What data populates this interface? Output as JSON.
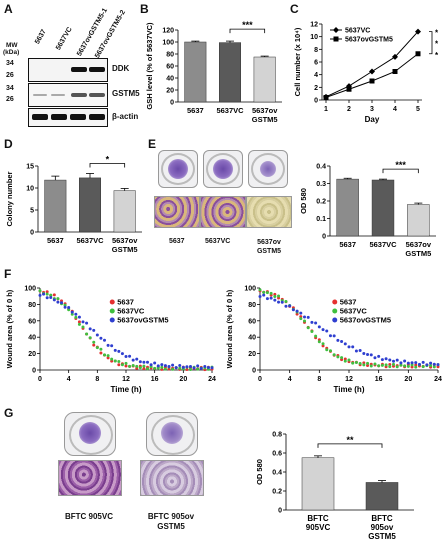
{
  "panels": {
    "A": "A",
    "B": "B",
    "C": "C",
    "D": "D",
    "E": "E",
    "F": "F",
    "G": "G"
  },
  "panelA": {
    "mw_title": "MW",
    "mw_unit": "(kDa)",
    "lanes": [
      "5637",
      "5637VC",
      "5637ovGSTM5-1",
      "5637ovGSTM5-2"
    ],
    "markers": [
      "34",
      "26",
      "34",
      "26"
    ],
    "blots": [
      "DDK",
      "GSTM5",
      "β-actin"
    ]
  },
  "chart_data": [
    {
      "id": "B",
      "type": "bar",
      "categories": [
        "5637",
        "5637VC",
        "5637ov GSTM5"
      ],
      "values": [
        100,
        99,
        75
      ],
      "errors": [
        1.5,
        2.5,
        1.5
      ],
      "ylabel": "GSH level (% of 5637VC)",
      "ylim": [
        0,
        120
      ],
      "yticks": [
        "0",
        "20",
        "40",
        "60",
        "80",
        "100",
        "120"
      ],
      "significance": "***",
      "bar_colors": [
        "#8c8c8c",
        "#5a5a5a",
        "#d3d3d3"
      ]
    },
    {
      "id": "C",
      "type": "line",
      "x": [
        1,
        2,
        3,
        4,
        5
      ],
      "xticks": [
        "1",
        "2",
        "3",
        "4",
        "5"
      ],
      "xlabel": "Day",
      "ylabel": "Cell number (x 10⁴)",
      "ylim": [
        0,
        12
      ],
      "yticks": [
        "0",
        "2",
        "4",
        "6",
        "8",
        "10",
        "12"
      ],
      "series": [
        {
          "name": "5637VC",
          "values": [
            0.5,
            2.2,
            4.5,
            6.8,
            10.8
          ],
          "marker": "diamond"
        },
        {
          "name": "5637ovGSTM5",
          "values": [
            0.4,
            1.7,
            3.0,
            4.5,
            7.3
          ],
          "marker": "square"
        }
      ],
      "significance": [
        "*",
        "*",
        "*"
      ]
    },
    {
      "id": "D",
      "type": "bar",
      "categories": [
        "5637",
        "5637VC",
        "5637ov GSTM5"
      ],
      "values": [
        11.8,
        12.3,
        9.4
      ],
      "errors": [
        0.9,
        1.0,
        0.5
      ],
      "ylabel": "Colony number",
      "ylim": [
        0,
        15
      ],
      "yticks": [
        "0",
        "5",
        "10",
        "15"
      ],
      "significance": "*",
      "bar_colors": [
        "#8c8c8c",
        "#5a5a5a",
        "#d3d3d3"
      ]
    },
    {
      "id": "E",
      "type": "bar",
      "categories": [
        "5637",
        "5637VC",
        "5637ov GSTM5"
      ],
      "values": [
        0.325,
        0.32,
        0.18
      ],
      "errors": [
        0.005,
        0.005,
        0.008
      ],
      "ylabel": "OD 580",
      "ylim": [
        0,
        0.4
      ],
      "yticks": [
        "0",
        "0.1",
        "0.2",
        "0.3",
        "0.4"
      ],
      "significance": "***",
      "bar_colors": [
        "#8c8c8c",
        "#5a5a5a",
        "#d3d3d3"
      ]
    },
    {
      "id": "F1",
      "type": "scatter",
      "xlabel": "Time (h)",
      "ylabel": "Wound area (% of 0 h)",
      "xlim": [
        0,
        24
      ],
      "xticks": [
        "0",
        "4",
        "8",
        "12",
        "16",
        "20",
        "24"
      ],
      "ylim": [
        0,
        100
      ],
      "yticks": [
        "0",
        "20",
        "40",
        "60",
        "80",
        "100"
      ],
      "series": [
        {
          "name": "5637",
          "color": "#e53030",
          "t0": 0.5,
          "k": 0.55,
          "floor": 2
        },
        {
          "name": "5637VC",
          "color": "#3fbf3f",
          "t0": 0.5,
          "k": 0.5,
          "floor": 2
        },
        {
          "name": "5637ovGSTM5",
          "color": "#2f3fd0",
          "t0": 1.5,
          "k": 0.35,
          "floor": 3
        }
      ]
    },
    {
      "id": "F2",
      "type": "scatter",
      "xlabel": "Time (h)",
      "ylabel": "Wound area (% of 0 h)",
      "xlim": [
        0,
        24
      ],
      "xticks": [
        "0",
        "4",
        "8",
        "12",
        "16",
        "20",
        "24"
      ],
      "ylim": [
        0,
        100
      ],
      "yticks": [
        "0",
        "20",
        "40",
        "60",
        "80",
        "100"
      ],
      "series": [
        {
          "name": "5637",
          "color": "#e53030",
          "t0": 1.0,
          "k": 0.5,
          "floor": 5
        },
        {
          "name": "5637VC",
          "color": "#3fbf3f",
          "t0": 1.0,
          "k": 0.5,
          "floor": 5
        },
        {
          "name": "5637ovGSTM5",
          "color": "#2f3fd0",
          "t0": 2.5,
          "k": 0.28,
          "floor": 6
        }
      ]
    },
    {
      "id": "G",
      "type": "bar",
      "categories": [
        "BFTC 905VC",
        "BFTC 905ov GSTM5"
      ],
      "values": [
        0.55,
        0.29
      ],
      "errors": [
        0.02,
        0.02
      ],
      "ylabel": "OD 580",
      "ylim": [
        0,
        0.8
      ],
      "yticks": [
        "0",
        "0.2",
        "0.4",
        "0.6",
        "0.8"
      ],
      "significance": "**",
      "bar_colors": [
        "#d3d3d3",
        "#5a5a5a"
      ]
    }
  ],
  "panelE": {
    "labels": [
      "5637",
      "5637VC",
      "5637ov GSTM5"
    ]
  },
  "panelG": {
    "labels": [
      "BFTC 905VC",
      "BFTC 905ov GSTM5"
    ]
  }
}
